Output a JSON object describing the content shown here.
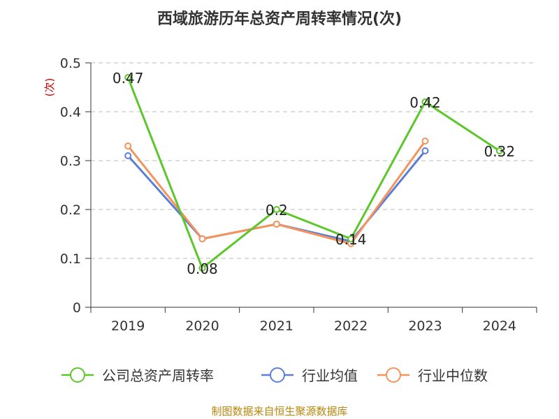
{
  "chart_data": {
    "type": "line",
    "title": "西域旅游历年总资产周转率情况(次)",
    "ylabel": "(次)",
    "categories": [
      "2019",
      "2020",
      "2021",
      "2022",
      "2023",
      "2024"
    ],
    "ylim": [
      0,
      0.5
    ],
    "yticks": [
      "0",
      "0.1",
      "0.2",
      "0.3",
      "0.4",
      "0.5"
    ],
    "grid": true,
    "legend_position": "bottom",
    "series": [
      {
        "name": "公司总资产周转率",
        "color": "#5cc72a",
        "values": [
          0.47,
          0.08,
          0.2,
          0.14,
          0.42,
          0.32
        ],
        "labels": [
          "0.47",
          "0.08",
          "0.2",
          "0.14",
          "0.42",
          "0.32"
        ]
      },
      {
        "name": "行业均值",
        "color": "#5b7fd6",
        "values": [
          0.31,
          0.14,
          0.17,
          0.135,
          0.32,
          null
        ]
      },
      {
        "name": "行业中位数",
        "color": "#f4935b",
        "values": [
          0.33,
          0.14,
          0.17,
          0.13,
          0.34,
          null
        ]
      }
    ],
    "source": "制图数据来自恒生聚源数据库"
  }
}
